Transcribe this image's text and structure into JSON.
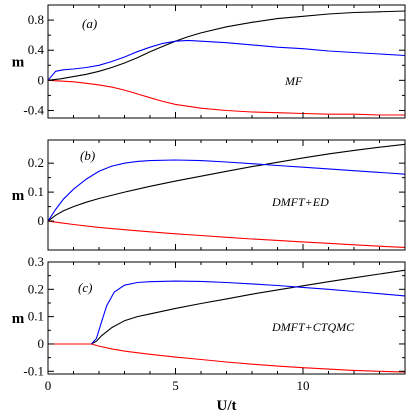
{
  "chart_data": [
    {
      "type": "line",
      "panel_tag": "(a)",
      "annotation": "MF",
      "ylabel": "m",
      "xlim": [
        0,
        14
      ],
      "ylim": [
        -0.5,
        1.0
      ],
      "yticks": [
        {
          "v": -0.4,
          "label": "-0.4"
        },
        {
          "v": 0,
          "label": "0"
        },
        {
          "v": 0.4,
          "label": "0.4"
        },
        {
          "v": 0.8,
          "label": "0.8"
        }
      ],
      "series": [
        {
          "color": "#000000",
          "x": [
            0,
            0.5,
            1,
            1.5,
            2,
            2.5,
            3,
            3.5,
            4,
            4.5,
            5,
            5.5,
            6,
            7,
            8,
            9,
            10,
            11,
            12,
            13,
            14
          ],
          "y": [
            0,
            0.02,
            0.05,
            0.08,
            0.12,
            0.17,
            0.23,
            0.3,
            0.38,
            0.45,
            0.52,
            0.58,
            0.63,
            0.71,
            0.77,
            0.82,
            0.85,
            0.88,
            0.9,
            0.91,
            0.92
          ]
        },
        {
          "color": "#0000ff",
          "x": [
            0,
            0.3,
            0.6,
            1,
            1.5,
            2,
            2.5,
            3,
            3.5,
            4,
            4.5,
            5,
            5.5,
            6,
            7,
            8,
            9,
            10,
            11,
            12,
            13,
            14
          ],
          "y": [
            0,
            0.12,
            0.14,
            0.15,
            0.17,
            0.2,
            0.25,
            0.31,
            0.38,
            0.44,
            0.49,
            0.52,
            0.53,
            0.52,
            0.5,
            0.47,
            0.44,
            0.42,
            0.39,
            0.37,
            0.35,
            0.33
          ]
        },
        {
          "color": "#ff0000",
          "x": [
            0,
            0.5,
            1,
            1.5,
            2,
            2.5,
            3,
            3.5,
            4,
            4.5,
            5,
            6,
            7,
            8,
            9,
            10,
            11,
            12,
            13,
            14
          ],
          "y": [
            0,
            -0.01,
            -0.02,
            -0.04,
            -0.06,
            -0.09,
            -0.13,
            -0.18,
            -0.23,
            -0.28,
            -0.32,
            -0.37,
            -0.4,
            -0.42,
            -0.43,
            -0.44,
            -0.45,
            -0.45,
            -0.46,
            -0.46
          ]
        }
      ]
    },
    {
      "type": "line",
      "panel_tag": "(b)",
      "annotation": "DMFT+ED",
      "ylabel": "m",
      "xlim": [
        0,
        14
      ],
      "ylim": [
        -0.1,
        0.28
      ],
      "yticks": [
        {
          "v": 0,
          "label": "0"
        },
        {
          "v": 0.1,
          "label": "0.1"
        },
        {
          "v": 0.2,
          "label": "0.2"
        }
      ],
      "series": [
        {
          "color": "#000000",
          "x": [
            0,
            0.3,
            0.6,
            1,
            1.5,
            2,
            3,
            4,
            5,
            6,
            7,
            8,
            9,
            10,
            11,
            12,
            13,
            14
          ],
          "y": [
            0,
            0.02,
            0.035,
            0.05,
            0.065,
            0.078,
            0.1,
            0.12,
            0.138,
            0.155,
            0.172,
            0.188,
            0.203,
            0.218,
            0.232,
            0.244,
            0.255,
            0.265
          ]
        },
        {
          "color": "#0000ff",
          "x": [
            0,
            0.3,
            0.6,
            1,
            1.5,
            2,
            2.5,
            3,
            3.5,
            4,
            5,
            6,
            7,
            8,
            9,
            10,
            11,
            12,
            13,
            14
          ],
          "y": [
            0,
            0.04,
            0.075,
            0.11,
            0.145,
            0.172,
            0.19,
            0.2,
            0.206,
            0.209,
            0.211,
            0.209,
            0.204,
            0.198,
            0.192,
            0.186,
            0.18,
            0.174,
            0.168,
            0.162
          ]
        },
        {
          "color": "#ff0000",
          "x": [
            0,
            0.5,
            1,
            2,
            3,
            4,
            5,
            6,
            7,
            8,
            9,
            10,
            11,
            12,
            13,
            14
          ],
          "y": [
            0,
            -0.006,
            -0.012,
            -0.022,
            -0.03,
            -0.037,
            -0.044,
            -0.05,
            -0.056,
            -0.062,
            -0.067,
            -0.072,
            -0.077,
            -0.082,
            -0.087,
            -0.091
          ]
        }
      ]
    },
    {
      "type": "line",
      "panel_tag": "(c)",
      "annotation": "DMFT+CTQMC",
      "ylabel": "m",
      "xlabel": "U/t",
      "xlim": [
        0,
        14
      ],
      "ylim": [
        -0.11,
        0.3
      ],
      "xticks": [
        {
          "v": 0,
          "label": "0"
        },
        {
          "v": 5,
          "label": "5"
        },
        {
          "v": 10,
          "label": "10"
        }
      ],
      "yticks": [
        {
          "v": -0.1,
          "label": "-0.1"
        },
        {
          "v": 0,
          "label": "0"
        },
        {
          "v": 0.1,
          "label": "0.1"
        },
        {
          "v": 0.2,
          "label": "0.2"
        },
        {
          "v": 0.3,
          "label": "0.3"
        }
      ],
      "series": [
        {
          "color": "#000000",
          "x": [
            0,
            1,
            1.7,
            1.9,
            2.1,
            2.5,
            3,
            3.5,
            4,
            5,
            6,
            7,
            8,
            9,
            10,
            11,
            12,
            13,
            14
          ],
          "y": [
            0,
            0,
            0,
            0.01,
            0.03,
            0.06,
            0.085,
            0.1,
            0.11,
            0.13,
            0.148,
            0.165,
            0.182,
            0.198,
            0.213,
            0.228,
            0.242,
            0.256,
            0.27
          ]
        },
        {
          "color": "#0000ff",
          "x": [
            0,
            1,
            1.7,
            1.9,
            2.1,
            2.3,
            2.6,
            3,
            3.5,
            4,
            5,
            6,
            7,
            8,
            9,
            10,
            11,
            12,
            13,
            14
          ],
          "y": [
            0,
            0,
            0,
            0.02,
            0.08,
            0.14,
            0.19,
            0.215,
            0.225,
            0.228,
            0.23,
            0.229,
            0.225,
            0.22,
            0.214,
            0.207,
            0.2,
            0.192,
            0.184,
            0.176
          ]
        },
        {
          "color": "#ff0000",
          "x": [
            0,
            1,
            1.7,
            2,
            2.5,
            3,
            4,
            5,
            6,
            7,
            8,
            9,
            10,
            11,
            12,
            13,
            14
          ],
          "y": [
            0,
            0,
            0,
            -0.008,
            -0.018,
            -0.026,
            -0.038,
            -0.048,
            -0.057,
            -0.066,
            -0.074,
            -0.081,
            -0.087,
            -0.092,
            -0.097,
            -0.1,
            -0.103
          ]
        }
      ]
    }
  ]
}
